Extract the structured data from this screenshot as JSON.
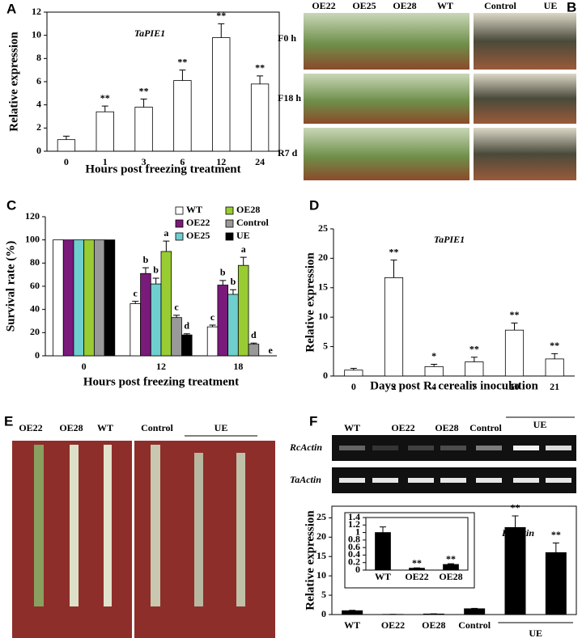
{
  "chart_data": [
    {
      "type": "bar",
      "label": "A",
      "title": "TaPIE1",
      "ylabel": "Relative expression",
      "xlabel": "Hours post freezing treatment",
      "categories": [
        "0",
        "1",
        "3",
        "6",
        "12",
        "24"
      ],
      "values": [
        1.0,
        3.4,
        3.8,
        6.1,
        9.8,
        5.8
      ],
      "errors": [
        0.3,
        0.5,
        0.7,
        0.9,
        1.2,
        0.7
      ],
      "annotations": [
        null,
        "**",
        "**",
        "**",
        "**",
        "**"
      ],
      "color": "#ffffff",
      "ylim": [
        0,
        12
      ],
      "yticks": [
        0,
        2,
        4,
        6,
        8,
        10,
        12
      ]
    },
    {
      "type": "grouped_bar",
      "label": "C",
      "ylabel": "Survival rate (%)",
      "xlabel": "Hours post freezing treatment",
      "categories": [
        "0",
        "12",
        "18"
      ],
      "legend": "upper right",
      "ylim": [
        0,
        120
      ],
      "yticks": [
        0,
        20,
        40,
        60,
        80,
        100,
        120
      ],
      "series": [
        {
          "name": "WT",
          "color": "#ffffff",
          "values": [
            100,
            45,
            25
          ],
          "errors": [
            0,
            2,
            1.5
          ],
          "annotations": [
            null,
            "c",
            "c"
          ]
        },
        {
          "name": "OE22",
          "color": "#7a1a7a",
          "values": [
            100,
            71,
            61
          ],
          "errors": [
            0,
            5,
            4
          ],
          "annotations": [
            null,
            "b",
            "b"
          ]
        },
        {
          "name": "OE25",
          "color": "#6fcfcf",
          "values": [
            100,
            62,
            53
          ],
          "errors": [
            0,
            5,
            4
          ],
          "annotations": [
            null,
            "b",
            "b"
          ]
        },
        {
          "name": "OE28",
          "color": "#99cc33",
          "values": [
            100,
            90,
            78
          ],
          "errors": [
            0,
            9,
            7
          ],
          "annotations": [
            null,
            "a",
            "a"
          ]
        },
        {
          "name": "Control",
          "color": "#999999",
          "values": [
            100,
            33,
            10
          ],
          "errors": [
            0,
            2,
            1
          ],
          "annotations": [
            null,
            "c",
            "d"
          ]
        },
        {
          "name": "UE",
          "color": "#000000",
          "values": [
            100,
            18,
            0
          ],
          "errors": [
            0,
            1,
            0
          ],
          "annotations": [
            null,
            "d",
            "e"
          ]
        }
      ]
    },
    {
      "type": "bar",
      "label": "D",
      "title": "TaPIE1",
      "ylabel": "Relative expression",
      "xlabel": "Days post R. cerealis inoculation",
      "categories": [
        "0",
        "2",
        "4",
        "7",
        "10",
        "21"
      ],
      "values": [
        1.0,
        16.7,
        1.6,
        2.4,
        7.8,
        2.9
      ],
      "errors": [
        0.3,
        3.0,
        0.4,
        0.8,
        1.2,
        0.9
      ],
      "annotations": [
        null,
        "**",
        "*",
        "**",
        "**",
        "**"
      ],
      "color": "#ffffff",
      "ylim": [
        0,
        25
      ],
      "yticks": [
        0,
        5,
        10,
        15,
        20,
        25
      ]
    },
    {
      "type": "bar",
      "label": "F",
      "title": "RcActin",
      "ylabel": "Relative expression",
      "group_label": "UE",
      "categories": [
        "WT",
        "OE22",
        "OE28",
        "Control",
        null,
        null
      ],
      "values": [
        1.0,
        0.05,
        0.15,
        1.5,
        22.5,
        16.0
      ],
      "errors": [
        0.1,
        0.01,
        0.02,
        0.1,
        3.0,
        2.5
      ],
      "annotations": [
        null,
        null,
        null,
        null,
        "**",
        "**"
      ],
      "color": "#000000",
      "ylim": [
        0,
        28
      ],
      "yticks": [
        0,
        5,
        10,
        15,
        20,
        25
      ]
    },
    {
      "type": "bar",
      "categories": [
        "WT",
        "OE22",
        "OE28"
      ],
      "values": [
        1.0,
        0.05,
        0.15
      ],
      "errors": [
        0.15,
        0.01,
        0.02
      ],
      "annotations": [
        null,
        "**",
        "**"
      ],
      "color": "#000000",
      "ylim": [
        0,
        1.4
      ],
      "yticks": [
        0,
        0.2,
        0.4,
        0.6,
        0.8,
        1,
        1.2,
        1.4
      ]
    }
  ],
  "photo_b": {
    "label": "B",
    "columns": [
      "OE22",
      "OE25",
      "OE28",
      "WT"
    ],
    "columns_right": [
      "Control",
      "UE"
    ],
    "rows": [
      "F0 h",
      "F18 h",
      "R7 d"
    ]
  },
  "photo_e": {
    "label": "E",
    "columns": [
      "OE22",
      "OE28",
      "WT"
    ],
    "columns_right": [
      "Control",
      "UE"
    ]
  },
  "gel_f": {
    "lanes": [
      "WT",
      "OE22",
      "OE28",
      "Control",
      "UE"
    ],
    "rows": [
      "RcActin",
      "TaActin"
    ]
  }
}
